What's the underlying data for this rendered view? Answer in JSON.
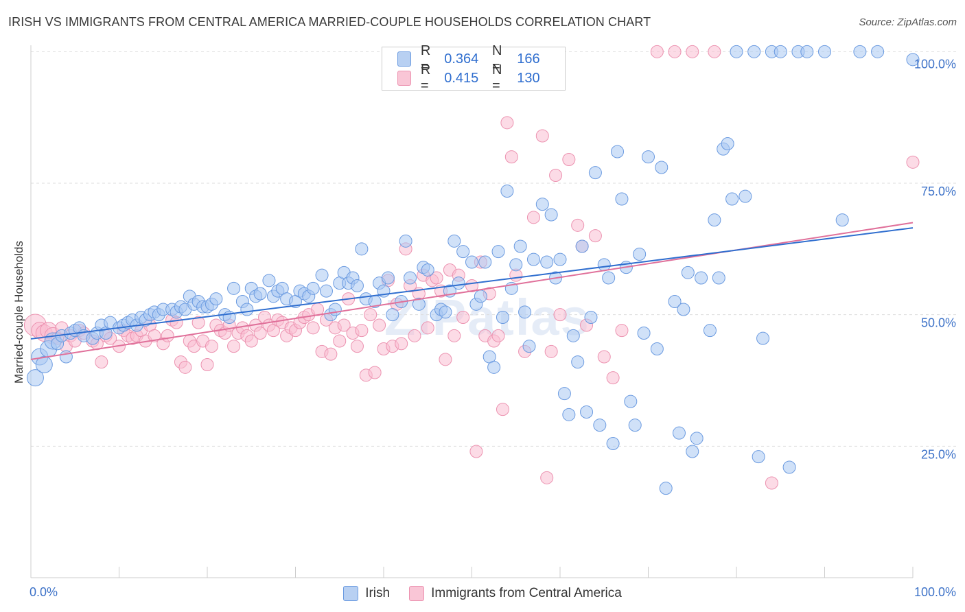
{
  "title": "IRISH VS IMMIGRANTS FROM CENTRAL AMERICA MARRIED-COUPLE HOUSEHOLDS CORRELATION CHART",
  "source": "Source: ZipAtlas.com",
  "watermark": "ZIPatlas",
  "colors": {
    "blue": "#6a9ae0",
    "blue_fill": "#b8d0f2",
    "pink": "#ec92b0",
    "pink_fill": "#f9c6d6",
    "blue_line": "#2f6ecf",
    "pink_line": "#e0709a",
    "tick_text": "#3d72c8"
  },
  "legend_top": {
    "rows": [
      {
        "r_label": "R =",
        "r_value": "0.364",
        "n_label": "N =",
        "n_value": "166"
      },
      {
        "r_label": "R =",
        "r_value": "0.415",
        "n_label": "N =",
        "n_value": "130"
      }
    ]
  },
  "legend_bottom": [
    "Irish",
    "Immigrants from Central America"
  ],
  "chart_data": {
    "type": "scatter",
    "title": "IRISH VS IMMIGRANTS FROM CENTRAL AMERICA MARRIED-COUPLE HOUSEHOLDS CORRELATION CHART",
    "xlabel": "",
    "ylabel": "Married-couple Households",
    "xlim": [
      0,
      100
    ],
    "ylim": [
      0,
      102
    ],
    "x_tick_labels": [
      "0.0%",
      "100.0%"
    ],
    "y_tick_labels": [
      "25.0%",
      "50.0%",
      "75.0%",
      "100.0%"
    ],
    "y_tick_values": [
      25,
      50,
      75,
      100
    ],
    "grid": true,
    "series": [
      {
        "name": "Irish",
        "r": 0.364,
        "n": 166,
        "trend": {
          "x": [
            0,
            100
          ],
          "y": [
            45.4,
            66.5
          ]
        },
        "points": [
          [
            0.5,
            38
          ],
          [
            1,
            42
          ],
          [
            1.5,
            40.5
          ],
          [
            2,
            43.5
          ],
          [
            2.5,
            45
          ],
          [
            3,
            44.5
          ],
          [
            3.5,
            46
          ],
          [
            4,
            42
          ],
          [
            4.5,
            46.5
          ],
          [
            5,
            47
          ],
          [
            5.5,
            47.5
          ],
          [
            6,
            46
          ],
          [
            7,
            45.5
          ],
          [
            7.5,
            46.5
          ],
          [
            8,
            48
          ],
          [
            8.5,
            46.5
          ],
          [
            9,
            48.5
          ],
          [
            10,
            47.5
          ],
          [
            10.5,
            48
          ],
          [
            11,
            48.5
          ],
          [
            11.5,
            49
          ],
          [
            12,
            48
          ],
          [
            12.5,
            49.5
          ],
          [
            13,
            49
          ],
          [
            13.5,
            50
          ],
          [
            14,
            50.5
          ],
          [
            14.5,
            50
          ],
          [
            15,
            51
          ],
          [
            16,
            51
          ],
          [
            16.5,
            50.5
          ],
          [
            17,
            51.5
          ],
          [
            17.5,
            51
          ],
          [
            18,
            53.5
          ],
          [
            18.5,
            52
          ],
          [
            19,
            52.5
          ],
          [
            19.5,
            51.5
          ],
          [
            20,
            51.5
          ],
          [
            20.5,
            52
          ],
          [
            21,
            53
          ],
          [
            22,
            50
          ],
          [
            22.5,
            49.5
          ],
          [
            23,
            55
          ],
          [
            24,
            52.5
          ],
          [
            24.5,
            51
          ],
          [
            25,
            55
          ],
          [
            25.5,
            53.5
          ],
          [
            26,
            54
          ],
          [
            27,
            56.5
          ],
          [
            27.5,
            53.5
          ],
          [
            28,
            54.5
          ],
          [
            28.5,
            55
          ],
          [
            29,
            53
          ],
          [
            30,
            52.5
          ],
          [
            30.5,
            54.5
          ],
          [
            31,
            54
          ],
          [
            31.5,
            53.5
          ],
          [
            32,
            55
          ],
          [
            33,
            57.5
          ],
          [
            33.5,
            54.5
          ],
          [
            34,
            50
          ],
          [
            34.5,
            51
          ],
          [
            35,
            56
          ],
          [
            35.5,
            58
          ],
          [
            36,
            56
          ],
          [
            36.5,
            57
          ],
          [
            37,
            55.5
          ],
          [
            37.5,
            62.5
          ],
          [
            38,
            53
          ],
          [
            39,
            52.5
          ],
          [
            39.5,
            56
          ],
          [
            40,
            54.5
          ],
          [
            40.5,
            57
          ],
          [
            41,
            50
          ],
          [
            42,
            52.5
          ],
          [
            42.5,
            64
          ],
          [
            43,
            57
          ],
          [
            44,
            52
          ],
          [
            44.5,
            59
          ],
          [
            45,
            58.5
          ],
          [
            46,
            50
          ],
          [
            46.5,
            51
          ],
          [
            47,
            50.5
          ],
          [
            47.5,
            54.5
          ],
          [
            48,
            64
          ],
          [
            48.5,
            56
          ],
          [
            49,
            62
          ],
          [
            50,
            60
          ],
          [
            50.5,
            52
          ],
          [
            51,
            53.5
          ],
          [
            51.5,
            60
          ],
          [
            52,
            42
          ],
          [
            52.5,
            40
          ],
          [
            53,
            62
          ],
          [
            53.5,
            49.5
          ],
          [
            54,
            73.5
          ],
          [
            54.5,
            55
          ],
          [
            55,
            59.5
          ],
          [
            55.5,
            63
          ],
          [
            56,
            50.5
          ],
          [
            56.5,
            44
          ],
          [
            57,
            60.5
          ],
          [
            58,
            71
          ],
          [
            58.5,
            60
          ],
          [
            59,
            69
          ],
          [
            59.5,
            57
          ],
          [
            60,
            60.5
          ],
          [
            60.5,
            35
          ],
          [
            61,
            31
          ],
          [
            61.5,
            46
          ],
          [
            62,
            41
          ],
          [
            62.5,
            63
          ],
          [
            63,
            31.5
          ],
          [
            63.5,
            49.5
          ],
          [
            64,
            77
          ],
          [
            64.5,
            29
          ],
          [
            65,
            59.5
          ],
          [
            65.5,
            57
          ],
          [
            66,
            25.5
          ],
          [
            66.5,
            81
          ],
          [
            67,
            72
          ],
          [
            67.5,
            59
          ],
          [
            68,
            33.5
          ],
          [
            68.5,
            29
          ],
          [
            69,
            61.5
          ],
          [
            69.5,
            46.5
          ],
          [
            70,
            80
          ],
          [
            71,
            43.5
          ],
          [
            71.5,
            78
          ],
          [
            72,
            17
          ],
          [
            73,
            52.5
          ],
          [
            73.5,
            27.5
          ],
          [
            74,
            51
          ],
          [
            74.5,
            58
          ],
          [
            75,
            24
          ],
          [
            75.5,
            26.5
          ],
          [
            76,
            57
          ],
          [
            77,
            47
          ],
          [
            77.5,
            68
          ],
          [
            78,
            57
          ],
          [
            78.5,
            81.5
          ],
          [
            79,
            82.5
          ],
          [
            79.5,
            72
          ],
          [
            80,
            100
          ],
          [
            81,
            72.5
          ],
          [
            82,
            100
          ],
          [
            82.5,
            23
          ],
          [
            83,
            45.5
          ],
          [
            84,
            100
          ],
          [
            85,
            100
          ],
          [
            86,
            21
          ],
          [
            87,
            100
          ],
          [
            88,
            100
          ],
          [
            90,
            100
          ],
          [
            92,
            68
          ],
          [
            94,
            100
          ],
          [
            96,
            100
          ],
          [
            100,
            98.5
          ]
        ]
      },
      {
        "name": "Immigrants from Central America",
        "r": 0.415,
        "n": 130,
        "trend": {
          "x": [
            0,
            100
          ],
          "y": [
            41.5,
            67.5
          ]
        },
        "points": [
          [
            0.5,
            48
          ],
          [
            1,
            47
          ],
          [
            1.5,
            46.5
          ],
          [
            2,
            47
          ],
          [
            2.5,
            46
          ],
          [
            3,
            45.5
          ],
          [
            3.5,
            47.5
          ],
          [
            4,
            44
          ],
          [
            4.5,
            46
          ],
          [
            5,
            45
          ],
          [
            5.5,
            47
          ],
          [
            6,
            46.5
          ],
          [
            7,
            45
          ],
          [
            7.5,
            44.5
          ],
          [
            8,
            41
          ],
          [
            8.5,
            46
          ],
          [
            9,
            45.5
          ],
          [
            10,
            44
          ],
          [
            10.5,
            47
          ],
          [
            11,
            46
          ],
          [
            11.5,
            45.5
          ],
          [
            12,
            46
          ],
          [
            12.5,
            47
          ],
          [
            13,
            45
          ],
          [
            13.5,
            48
          ],
          [
            14,
            46
          ],
          [
            15,
            44.5
          ],
          [
            15.5,
            46
          ],
          [
            16,
            49
          ],
          [
            16.5,
            48.5
          ],
          [
            17,
            41
          ],
          [
            17.5,
            40
          ],
          [
            18,
            45
          ],
          [
            18.5,
            44
          ],
          [
            19,
            48.5
          ],
          [
            19.5,
            45
          ],
          [
            20,
            40.5
          ],
          [
            20.5,
            44
          ],
          [
            21,
            48
          ],
          [
            21.5,
            47
          ],
          [
            22,
            46.5
          ],
          [
            22.5,
            48
          ],
          [
            23,
            44
          ],
          [
            23.5,
            46.5
          ],
          [
            24,
            47.5
          ],
          [
            24.5,
            46
          ],
          [
            25,
            45
          ],
          [
            25.5,
            48
          ],
          [
            26,
            46.5
          ],
          [
            26.5,
            49.5
          ],
          [
            27,
            48
          ],
          [
            27.5,
            47
          ],
          [
            28,
            49
          ],
          [
            28.5,
            48.5
          ],
          [
            29,
            46
          ],
          [
            29.5,
            47.5
          ],
          [
            30,
            47
          ],
          [
            30.5,
            48.5
          ],
          [
            31,
            49.5
          ],
          [
            31.5,
            50
          ],
          [
            32,
            47.5
          ],
          [
            32.5,
            51
          ],
          [
            33,
            43
          ],
          [
            33.5,
            49
          ],
          [
            34,
            42.5
          ],
          [
            34.5,
            47.5
          ],
          [
            35,
            45
          ],
          [
            35.5,
            48
          ],
          [
            36,
            53
          ],
          [
            36.5,
            46.5
          ],
          [
            37,
            44
          ],
          [
            37.5,
            47
          ],
          [
            38,
            38.5
          ],
          [
            38.5,
            50
          ],
          [
            39,
            39
          ],
          [
            39.5,
            48
          ],
          [
            40,
            43.5
          ],
          [
            40.5,
            56.5
          ],
          [
            41,
            44
          ],
          [
            41.5,
            52
          ],
          [
            42,
            44.5
          ],
          [
            42.5,
            62.5
          ],
          [
            43,
            55.5
          ],
          [
            43.5,
            46
          ],
          [
            44,
            54
          ],
          [
            44.5,
            57.5
          ],
          [
            45,
            47.5
          ],
          [
            45.5,
            56.5
          ],
          [
            46,
            57
          ],
          [
            46.5,
            54.5
          ],
          [
            47,
            41.5
          ],
          [
            47.5,
            58.5
          ],
          [
            48,
            46
          ],
          [
            48.5,
            57.5
          ],
          [
            49,
            49.5
          ],
          [
            50,
            55.5
          ],
          [
            50.5,
            24
          ],
          [
            51,
            60
          ],
          [
            51.5,
            46
          ],
          [
            52,
            54
          ],
          [
            52.5,
            45
          ],
          [
            53,
            46
          ],
          [
            53.5,
            32
          ],
          [
            54,
            86.5
          ],
          [
            54.5,
            80
          ],
          [
            55,
            57.5
          ],
          [
            56,
            43
          ],
          [
            57,
            68.5
          ],
          [
            58,
            84
          ],
          [
            58.5,
            19
          ],
          [
            59,
            43
          ],
          [
            59.5,
            76.5
          ],
          [
            60,
            50
          ],
          [
            61,
            79.5
          ],
          [
            62,
            67
          ],
          [
            62.5,
            63
          ],
          [
            63,
            48
          ],
          [
            64,
            65
          ],
          [
            65,
            42
          ],
          [
            66,
            38
          ],
          [
            67,
            47
          ],
          [
            71,
            100
          ],
          [
            73,
            100
          ],
          [
            75,
            100
          ],
          [
            77.5,
            100
          ],
          [
            84,
            18
          ],
          [
            100,
            79
          ]
        ]
      }
    ]
  }
}
